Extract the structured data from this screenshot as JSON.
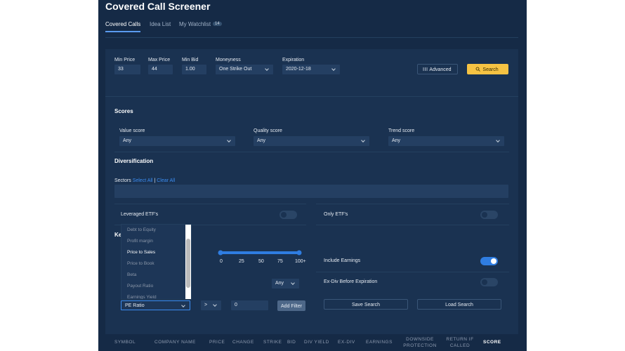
{
  "header": {
    "title": "Covered Call Screener"
  },
  "tabs": [
    {
      "label": "Covered Calls"
    },
    {
      "label": "Idea List"
    },
    {
      "label": "My Watchlist",
      "badge": "14"
    }
  ],
  "filters": [
    {
      "label": "Min Price",
      "value": "33"
    },
    {
      "label": "Max Price",
      "value": "44"
    },
    {
      "label": "Min Bid",
      "value": "1.00"
    },
    {
      "label": "Moneyness",
      "value": "One Strike Out"
    },
    {
      "label": "Expiration",
      "value": "2020-12-18"
    }
  ],
  "buttons": {
    "advanced": "Advanced",
    "search": "Search",
    "add_filter": "Add Filter",
    "save": "Save Search",
    "load": "Load Search"
  },
  "scores": {
    "title": "Scores",
    "fields": [
      {
        "label": "Value score",
        "value": "Any"
      },
      {
        "label": "Quality score",
        "value": "Any"
      },
      {
        "label": "Trend score",
        "value": "Any"
      }
    ]
  },
  "diversification": {
    "title": "Diversification",
    "sectors": "Sectors",
    "select_all": "Select All",
    "separator": "|",
    "clear_all": "Clear All"
  },
  "toggles": {
    "leveraged": "Leveraged ETF's",
    "only": "Only ETF's",
    "earnings": "Include Earnings",
    "exdiv": "Ex-Div Before Expiration"
  },
  "key": {
    "title": "Ke",
    "options": [
      "Debt to Equity",
      "Profit margin",
      "Price to Sales",
      "Price to Book",
      "Beta",
      "Payout Ratio",
      "Earnings Yield"
    ],
    "slider_ticks": [
      "0",
      "25",
      "50",
      "75",
      "100+"
    ],
    "any": "Any",
    "metric": "PE Ratio",
    "operator": ">",
    "value": "0"
  },
  "table": {
    "columns": [
      "SYMBOL",
      "COMPANY NAME",
      "PRICE",
      "CHANGE",
      "STRIKE",
      "BID",
      "DIV YIELD",
      "EX-DIV",
      "EARNINGS",
      "DOWNSIDE PROTECTION",
      "RETURN IF CALLED",
      "SCORE"
    ]
  }
}
